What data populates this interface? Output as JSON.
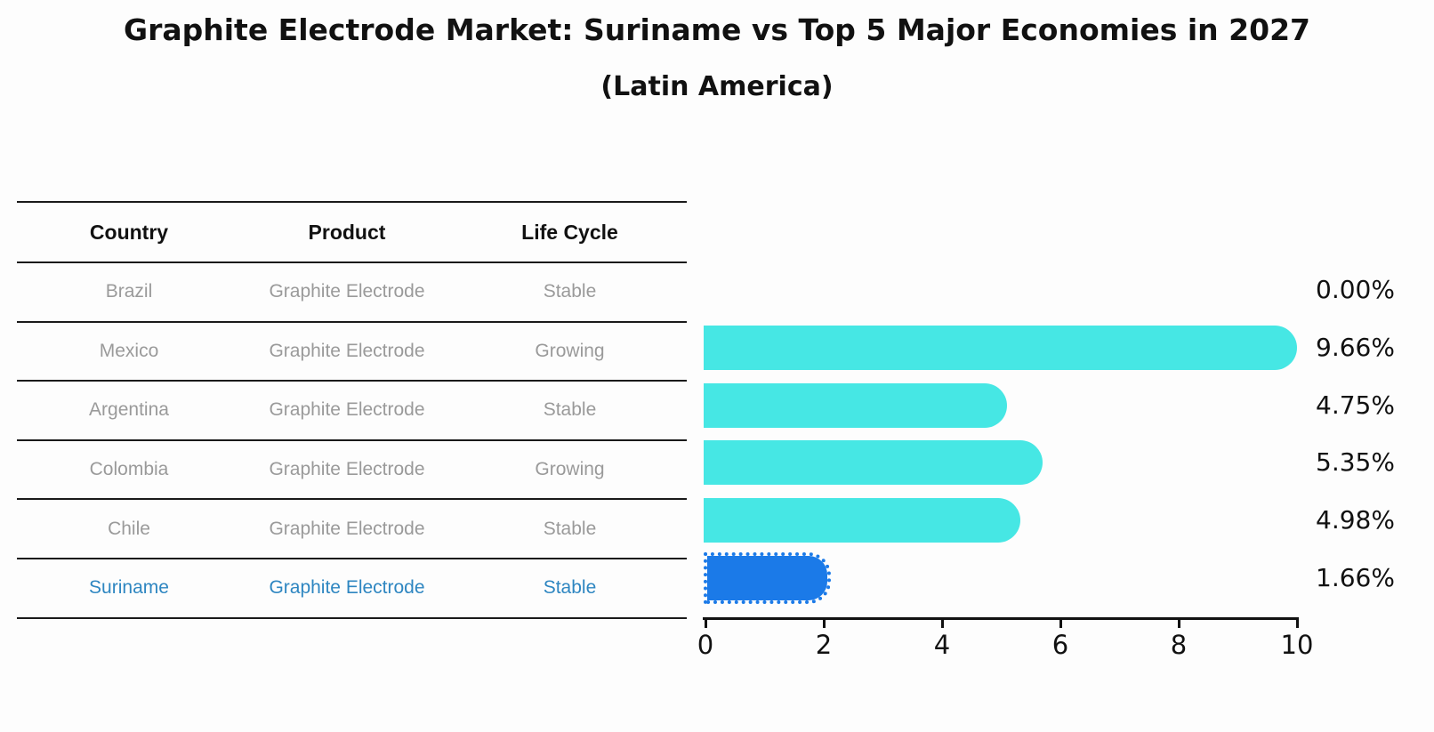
{
  "title": "Graphite Electrode Market: Suriname vs Top 5 Major Economies in 2027",
  "subtitle": "(Latin America)",
  "table": {
    "headers": [
      "Country",
      "Product",
      "Life Cycle"
    ],
    "rows": [
      {
        "country": "Brazil",
        "product": "Graphite Electrode",
        "life_cycle": "Stable"
      },
      {
        "country": "Mexico",
        "product": "Graphite Electrode",
        "life_cycle": "Growing"
      },
      {
        "country": "Argentina",
        "product": "Graphite Electrode",
        "life_cycle": "Stable"
      },
      {
        "country": "Colombia",
        "product": "Graphite Electrode",
        "life_cycle": "Growing"
      },
      {
        "country": "Chile",
        "product": "Graphite Electrode",
        "life_cycle": "Stable"
      },
      {
        "country": "Suriname",
        "product": "Graphite Electrode",
        "life_cycle": "Stable"
      }
    ],
    "highlight_row": "Suriname"
  },
  "chart_data": {
    "type": "bar",
    "orientation": "horizontal",
    "categories": [
      "Brazil",
      "Mexico",
      "Argentina",
      "Colombia",
      "Chile",
      "Suriname"
    ],
    "values": [
      0.0,
      9.66,
      4.75,
      5.35,
      4.98,
      1.66
    ],
    "value_labels": [
      "0.00%",
      "9.66%",
      "4.75%",
      "5.35%",
      "4.98%",
      "1.66%"
    ],
    "xticks": [
      "0",
      "2",
      "4",
      "6",
      "8",
      "10"
    ],
    "xlim": [
      0,
      10
    ],
    "grid": "off",
    "legend": "none",
    "highlight_index": 5
  },
  "colors": {
    "bar": "#46E7E4",
    "highlight_bar": "#1B7AE8",
    "highlight_text": "#2E86C1",
    "text": "#111111",
    "muted_text": "#9a9a9a"
  }
}
